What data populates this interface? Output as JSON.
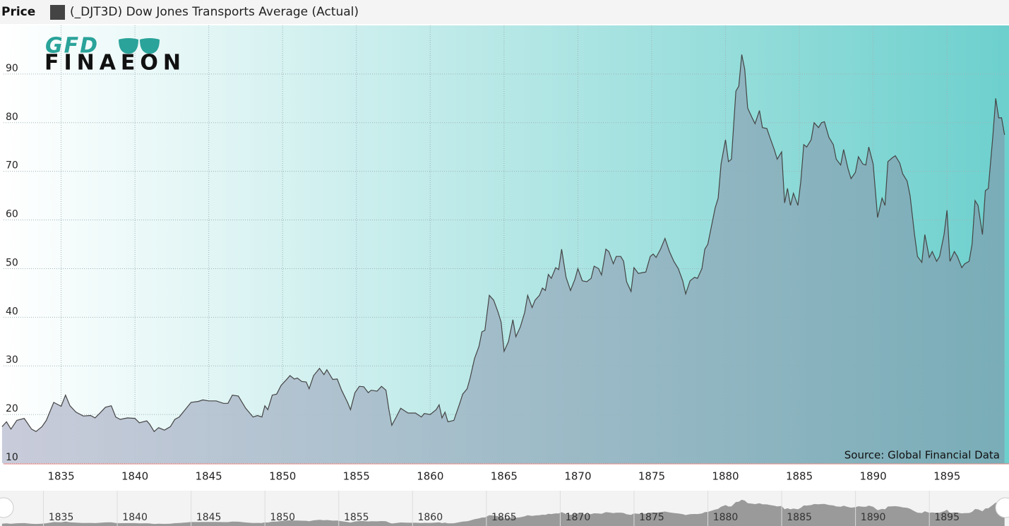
{
  "chart_data": {
    "type": "area",
    "header_label": "Price",
    "logo": {
      "top": "GFD",
      "bottom": "FINAEON"
    },
    "source": "Source: Global Financial Data",
    "xlim": [
      1831.1,
      1899.2
    ],
    "ylim": [
      10,
      100
    ],
    "xticks": [
      1835,
      1840,
      1845,
      1850,
      1855,
      1860,
      1865,
      1870,
      1875,
      1880,
      1885,
      1890,
      1895
    ],
    "yticks": [
      10,
      20,
      30,
      40,
      50,
      60,
      70,
      80,
      90
    ],
    "grid": true,
    "series": [
      {
        "name": "(_DJT3D) Dow Jones Transports Average (Actual)",
        "color": "#444444",
        "x": [
          1831.0,
          1831.3,
          1831.6,
          1832.0,
          1832.5,
          1833.0,
          1833.3,
          1833.7,
          1834.0,
          1834.5,
          1835.0,
          1835.3,
          1835.6,
          1836.0,
          1836.5,
          1837.0,
          1837.3,
          1837.6,
          1838.0,
          1838.4,
          1838.7,
          1839.0,
          1839.5,
          1840.0,
          1840.3,
          1840.8,
          1841.0,
          1841.3,
          1841.6,
          1842.0,
          1842.4,
          1842.7,
          1843.0,
          1843.4,
          1843.8,
          1844.3,
          1844.6,
          1845.0,
          1845.5,
          1846.0,
          1846.3,
          1846.6,
          1847.0,
          1847.5,
          1848.0,
          1848.3,
          1848.6,
          1848.8,
          1849.0,
          1849.3,
          1849.6,
          1849.9,
          1850.3,
          1850.5,
          1850.8,
          1851.0,
          1851.3,
          1851.6,
          1851.8,
          1852.1,
          1852.5,
          1852.8,
          1853.0,
          1853.4,
          1853.7,
          1854.0,
          1854.4,
          1854.6,
          1854.9,
          1855.2,
          1855.5,
          1855.8,
          1856.0,
          1856.4,
          1856.7,
          1857.0,
          1857.2,
          1857.4,
          1857.7,
          1858.0,
          1858.5,
          1859.0,
          1859.4,
          1859.6,
          1860.0,
          1860.4,
          1860.6,
          1860.8,
          1861.0,
          1861.2,
          1861.6,
          1862.0,
          1862.2,
          1862.5,
          1862.7,
          1863.0,
          1863.3,
          1863.5,
          1863.7,
          1864.0,
          1864.3,
          1864.6,
          1864.8,
          1865.0,
          1865.3,
          1865.6,
          1865.8,
          1866.1,
          1866.4,
          1866.6,
          1866.9,
          1867.1,
          1867.4,
          1867.6,
          1867.8,
          1868.0,
          1868.2,
          1868.5,
          1868.7,
          1868.9,
          1869.2,
          1869.5,
          1869.8,
          1870.0,
          1870.3,
          1870.6,
          1870.9,
          1871.1,
          1871.4,
          1871.6,
          1871.9,
          1872.1,
          1872.4,
          1872.6,
          1872.9,
          1873.1,
          1873.3,
          1873.6,
          1873.8,
          1874.1,
          1874.4,
          1874.6,
          1874.9,
          1875.1,
          1875.3,
          1875.6,
          1875.9,
          1876.2,
          1876.5,
          1876.8,
          1877.1,
          1877.3,
          1877.6,
          1877.9,
          1878.1,
          1878.4,
          1878.6,
          1878.8,
          1879.0,
          1879.3,
          1879.5,
          1879.7,
          1880.0,
          1880.2,
          1880.4,
          1880.7,
          1880.9,
          1881.1,
          1881.3,
          1881.5,
          1881.8,
          1882.0,
          1882.3,
          1882.5,
          1882.8,
          1883.0,
          1883.3,
          1883.5,
          1883.8,
          1884.0,
          1884.2,
          1884.4,
          1884.6,
          1884.9,
          1885.1,
          1885.3,
          1885.5,
          1885.8,
          1886.0,
          1886.3,
          1886.5,
          1886.7,
          1887.0,
          1887.3,
          1887.5,
          1887.8,
          1888.0,
          1888.3,
          1888.5,
          1888.8,
          1889.0,
          1889.3,
          1889.5,
          1889.7,
          1890.0,
          1890.3,
          1890.6,
          1890.8,
          1891.0,
          1891.3,
          1891.5,
          1891.8,
          1892.0,
          1892.3,
          1892.5,
          1892.8,
          1893.0,
          1893.3,
          1893.5,
          1893.8,
          1894.0,
          1894.3,
          1894.5,
          1894.8,
          1895.0,
          1895.2,
          1895.5,
          1895.7,
          1896.0,
          1896.2,
          1896.5,
          1896.7,
          1896.9,
          1897.1,
          1897.4,
          1897.6,
          1897.8,
          1898.1,
          1898.3,
          1898.5,
          1898.7,
          1898.9
        ],
        "values": [
          17.5,
          18.5,
          17,
          18.8,
          19.2,
          17,
          16.5,
          17.5,
          18.8,
          22.5,
          21.7,
          24,
          21.8,
          20.5,
          19.7,
          19.8,
          19.3,
          20.2,
          21.5,
          21.8,
          19.5,
          19,
          19.3,
          19.2,
          18.3,
          18.7,
          18,
          16.5,
          17.3,
          16.8,
          17.5,
          19,
          19.5,
          21,
          22.5,
          22.7,
          23,
          22.8,
          22.8,
          22.3,
          22.3,
          24,
          23.8,
          21.3,
          19.5,
          19.8,
          19.5,
          21.8,
          21,
          24,
          24.2,
          26,
          27.3,
          28,
          27.3,
          27.5,
          26.8,
          26.7,
          25.3,
          28,
          29.5,
          28.2,
          29.2,
          27.2,
          27.3,
          25,
          22.5,
          21,
          24.5,
          25.8,
          25.7,
          24.5,
          25,
          24.8,
          25.8,
          25,
          21,
          17.8,
          19.5,
          21.3,
          20.3,
          20.3,
          19.5,
          20.2,
          20,
          21,
          22,
          19.3,
          20.5,
          18.5,
          18.8,
          22.3,
          24.2,
          25.3,
          27.5,
          31.5,
          34,
          37,
          37.3,
          44.5,
          43.5,
          41,
          39,
          33,
          35,
          39.5,
          36,
          38,
          41,
          44.5,
          42,
          43.5,
          44.5,
          46,
          45.5,
          48.8,
          48,
          50.2,
          49.8,
          54,
          48.2,
          45.5,
          47.8,
          50,
          47.5,
          47.3,
          48,
          50.5,
          50,
          48.7,
          54,
          53.5,
          51,
          52.5,
          52.5,
          51.5,
          47.3,
          45.3,
          50.2,
          49,
          49.2,
          49.3,
          52.5,
          53,
          52.3,
          54,
          56.2,
          53.5,
          51.5,
          50,
          47.5,
          44.8,
          47.5,
          48.2,
          48,
          50,
          54,
          55,
          58,
          62.5,
          64.5,
          71.5,
          76.5,
          72,
          72.5,
          86.5,
          87.5,
          94,
          91,
          83,
          81,
          79.8,
          82.5,
          79,
          78.8,
          77,
          74.5,
          72.5,
          74,
          63.5,
          66.5,
          63,
          65.5,
          63,
          68,
          75.5,
          75,
          76.5,
          80,
          79,
          80,
          80.2,
          77,
          75.5,
          72.5,
          71.3,
          74.5,
          70.5,
          68.5,
          69.8,
          73,
          71.5,
          71.3,
          75,
          71.5,
          60.5,
          64.5,
          63,
          72,
          72.8,
          73.2,
          71.7,
          69.5,
          68,
          65,
          57,
          52.5,
          51.3,
          57,
          52.3,
          53.5,
          51.5,
          52.5,
          57,
          62,
          51.5,
          53.5,
          52.5,
          50.2,
          51,
          51.5,
          55,
          64,
          63,
          57,
          66,
          66.5,
          77,
          85,
          81,
          81,
          77.5
        ]
      }
    ]
  }
}
